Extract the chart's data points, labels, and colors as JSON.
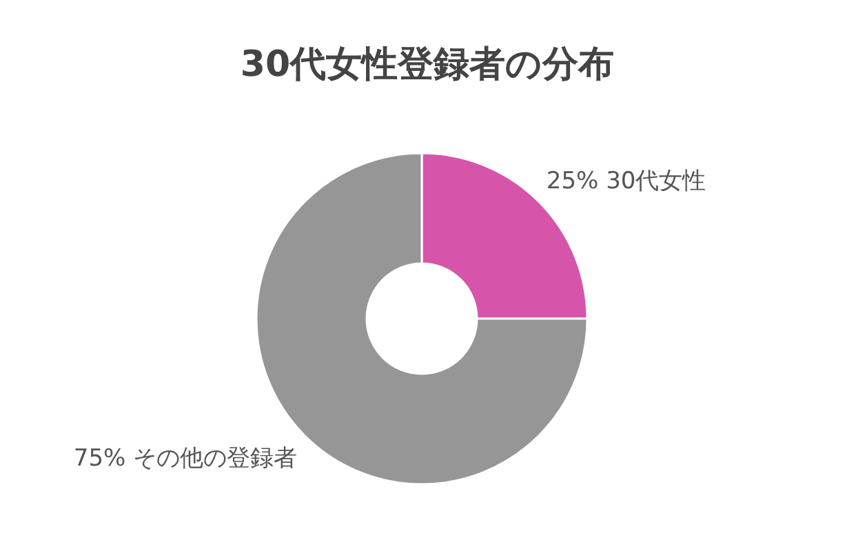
{
  "chart_data": {
    "type": "donut",
    "title": "30代女性登録者の分布",
    "categories": [
      "30代女性",
      "その他の登録者"
    ],
    "values": [
      25,
      75
    ],
    "value_labels": [
      "25%",
      "75%"
    ],
    "colors": [
      "#d655aa",
      "#969696"
    ],
    "legend": false
  }
}
